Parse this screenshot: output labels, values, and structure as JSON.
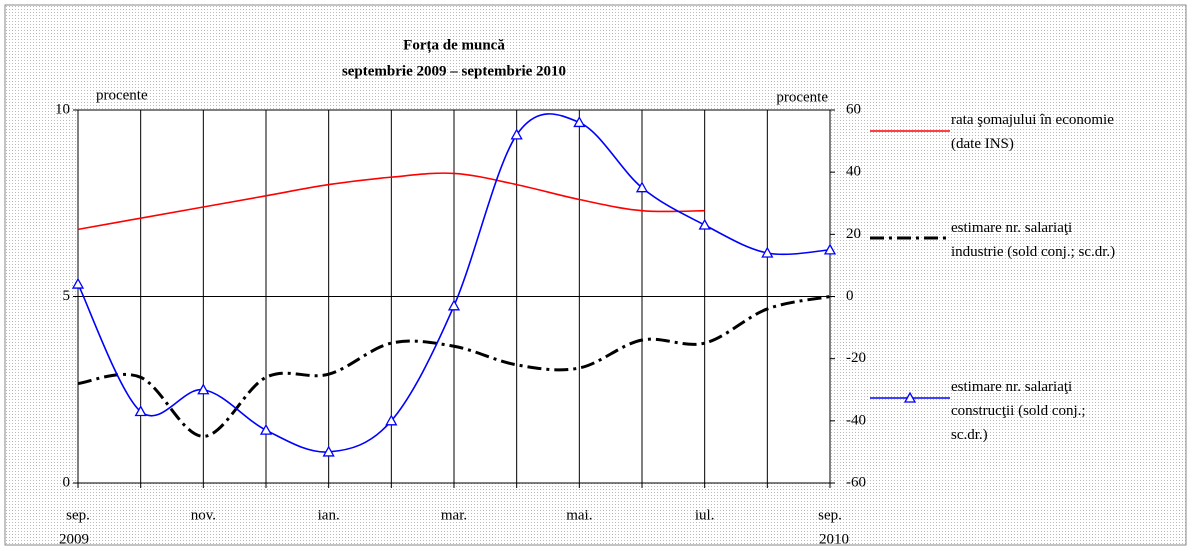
{
  "chart_data": {
    "type": "line",
    "title": "Forța de muncă",
    "subtitle": "septembrie 2009 – septembrie 2010",
    "y_label": "procente",
    "y2_label": "procente",
    "categories": [
      "sep.",
      null,
      "nov.",
      null,
      "ian.",
      null,
      "mar.",
      null,
      "mai.",
      null,
      "iul.",
      null,
      "sep."
    ],
    "category_years": [
      "2009",
      null,
      null,
      null,
      null,
      null,
      null,
      null,
      null,
      null,
      null,
      null,
      "2010"
    ],
    "ylim": [
      0,
      10
    ],
    "yticks": [
      0,
      5,
      10
    ],
    "y2lim": [
      -60,
      60
    ],
    "y2ticks": [
      -60,
      -40,
      -20,
      0,
      20,
      40,
      60
    ],
    "series": [
      {
        "name": "rata şomajului în economie (date INS)",
        "color": "#ff0000",
        "style": "solid",
        "values": [
          6.8,
          7.1,
          7.4,
          7.7,
          8.0,
          8.2,
          8.3,
          8.0,
          7.6,
          7.3,
          7.3,
          null,
          null
        ]
      },
      {
        "name": "estimare nr. salariaţi industrie (sold conj.; sc.dr.)",
        "color": "#000000",
        "style": "dashdot",
        "axis": "y2",
        "values": [
          -28,
          -26,
          -45,
          -26,
          -25,
          -15,
          -16,
          -22,
          -23,
          -14,
          -15,
          -4,
          0
        ]
      },
      {
        "name": "estimare nr. salariaţi construcţii (sold conj.; sc.dr.)",
        "color": "#0000ff",
        "style": "solid",
        "marker": "triangle",
        "axis": "y2",
        "values": [
          4,
          -37,
          -30,
          -43,
          -50,
          -40,
          -3,
          52,
          56,
          35,
          23,
          14,
          15
        ]
      }
    ]
  }
}
